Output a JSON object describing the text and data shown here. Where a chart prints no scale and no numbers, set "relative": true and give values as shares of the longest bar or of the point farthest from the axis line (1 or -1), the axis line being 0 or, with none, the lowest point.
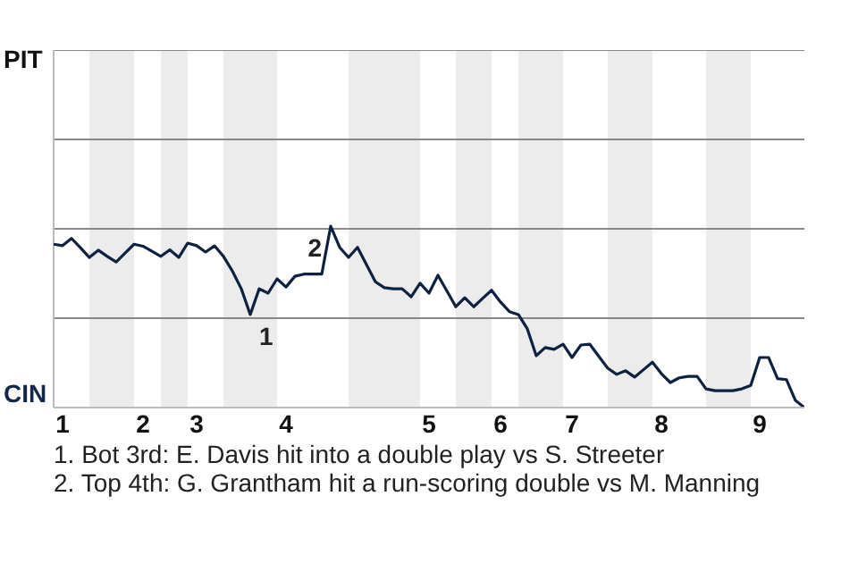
{
  "chart_data": {
    "type": "line",
    "relative": true,
    "categories": [
      null,
      "1",
      null,
      null,
      null,
      null,
      null,
      null,
      null,
      null,
      "2",
      null,
      null,
      null,
      null,
      null,
      "3",
      null,
      null,
      null,
      null,
      null,
      null,
      null,
      null,
      null,
      "4",
      null,
      null,
      null,
      null,
      null,
      null,
      null,
      null,
      null,
      null,
      null,
      null,
      null,
      null,
      null,
      "5",
      null,
      null,
      null,
      null,
      null,
      null,
      null,
      "6",
      null,
      null,
      null,
      null,
      null,
      null,
      null,
      "7",
      null,
      null,
      null,
      null,
      null,
      null,
      null,
      null,
      null,
      "8",
      null,
      null,
      null,
      null,
      null,
      null,
      null,
      null,
      null,
      null,
      "9",
      null,
      null,
      null,
      null,
      null
    ],
    "series": [
      {
        "color": "#0d2240",
        "values": [
          0.901,
          0.893,
          0.933,
          0.882,
          0.828,
          0.868,
          0.834,
          0.803,
          0.852,
          0.901,
          0.89,
          0.862,
          0.834,
          0.87,
          0.828,
          0.907,
          0.893,
          0.858,
          0.892,
          0.834,
          0.753,
          0.655,
          0.513,
          0.655,
          0.631,
          0.71,
          0.665,
          0.724,
          0.736,
          0.736,
          0.736,
          1,
          0.884,
          0.828,
          0.884,
          0.789,
          0.694,
          0.661,
          0.655,
          0.655,
          0.611,
          0.686,
          0.631,
          0.73,
          0.643,
          0.556,
          0.606,
          0.556,
          0.602,
          0.647,
          0.582,
          0.529,
          0.513,
          0.434,
          0.286,
          0.331,
          0.321,
          0.349,
          0.276,
          0.345,
          0.349,
          0.282,
          0.217,
          0.183,
          0.203,
          0.168,
          0.209,
          0.25,
          0.187,
          0.138,
          0.164,
          0.172,
          0.172,
          0.103,
          0.093,
          0.093,
          0.093,
          0.103,
          0.122,
          0.276,
          0.276,
          0.16,
          0.154,
          0.039,
          0
        ]
      }
    ],
    "ref_lines": [
      {
        "axis": "y",
        "value": 0.493,
        "color": "#888888"
      },
      {
        "axis": "y",
        "value": 0.986,
        "color": "#888888"
      },
      {
        "axis": "y",
        "value": 1.479,
        "color": "#888888"
      },
      {
        "axis": "y",
        "value": 1.972,
        "color": "#888888"
      }
    ],
    "annotations": [
      "PIT",
      "CIN",
      {
        "text": "1",
        "y": 0.513
      },
      {
        "text": "2",
        "y": 1
      },
      "1. Bot 3rd: E. Davis hit into a double play vs S. Streeter",
      "2. Top 4th: G. Grantham hit a run-scoring double vs M. Manning"
    ]
  }
}
